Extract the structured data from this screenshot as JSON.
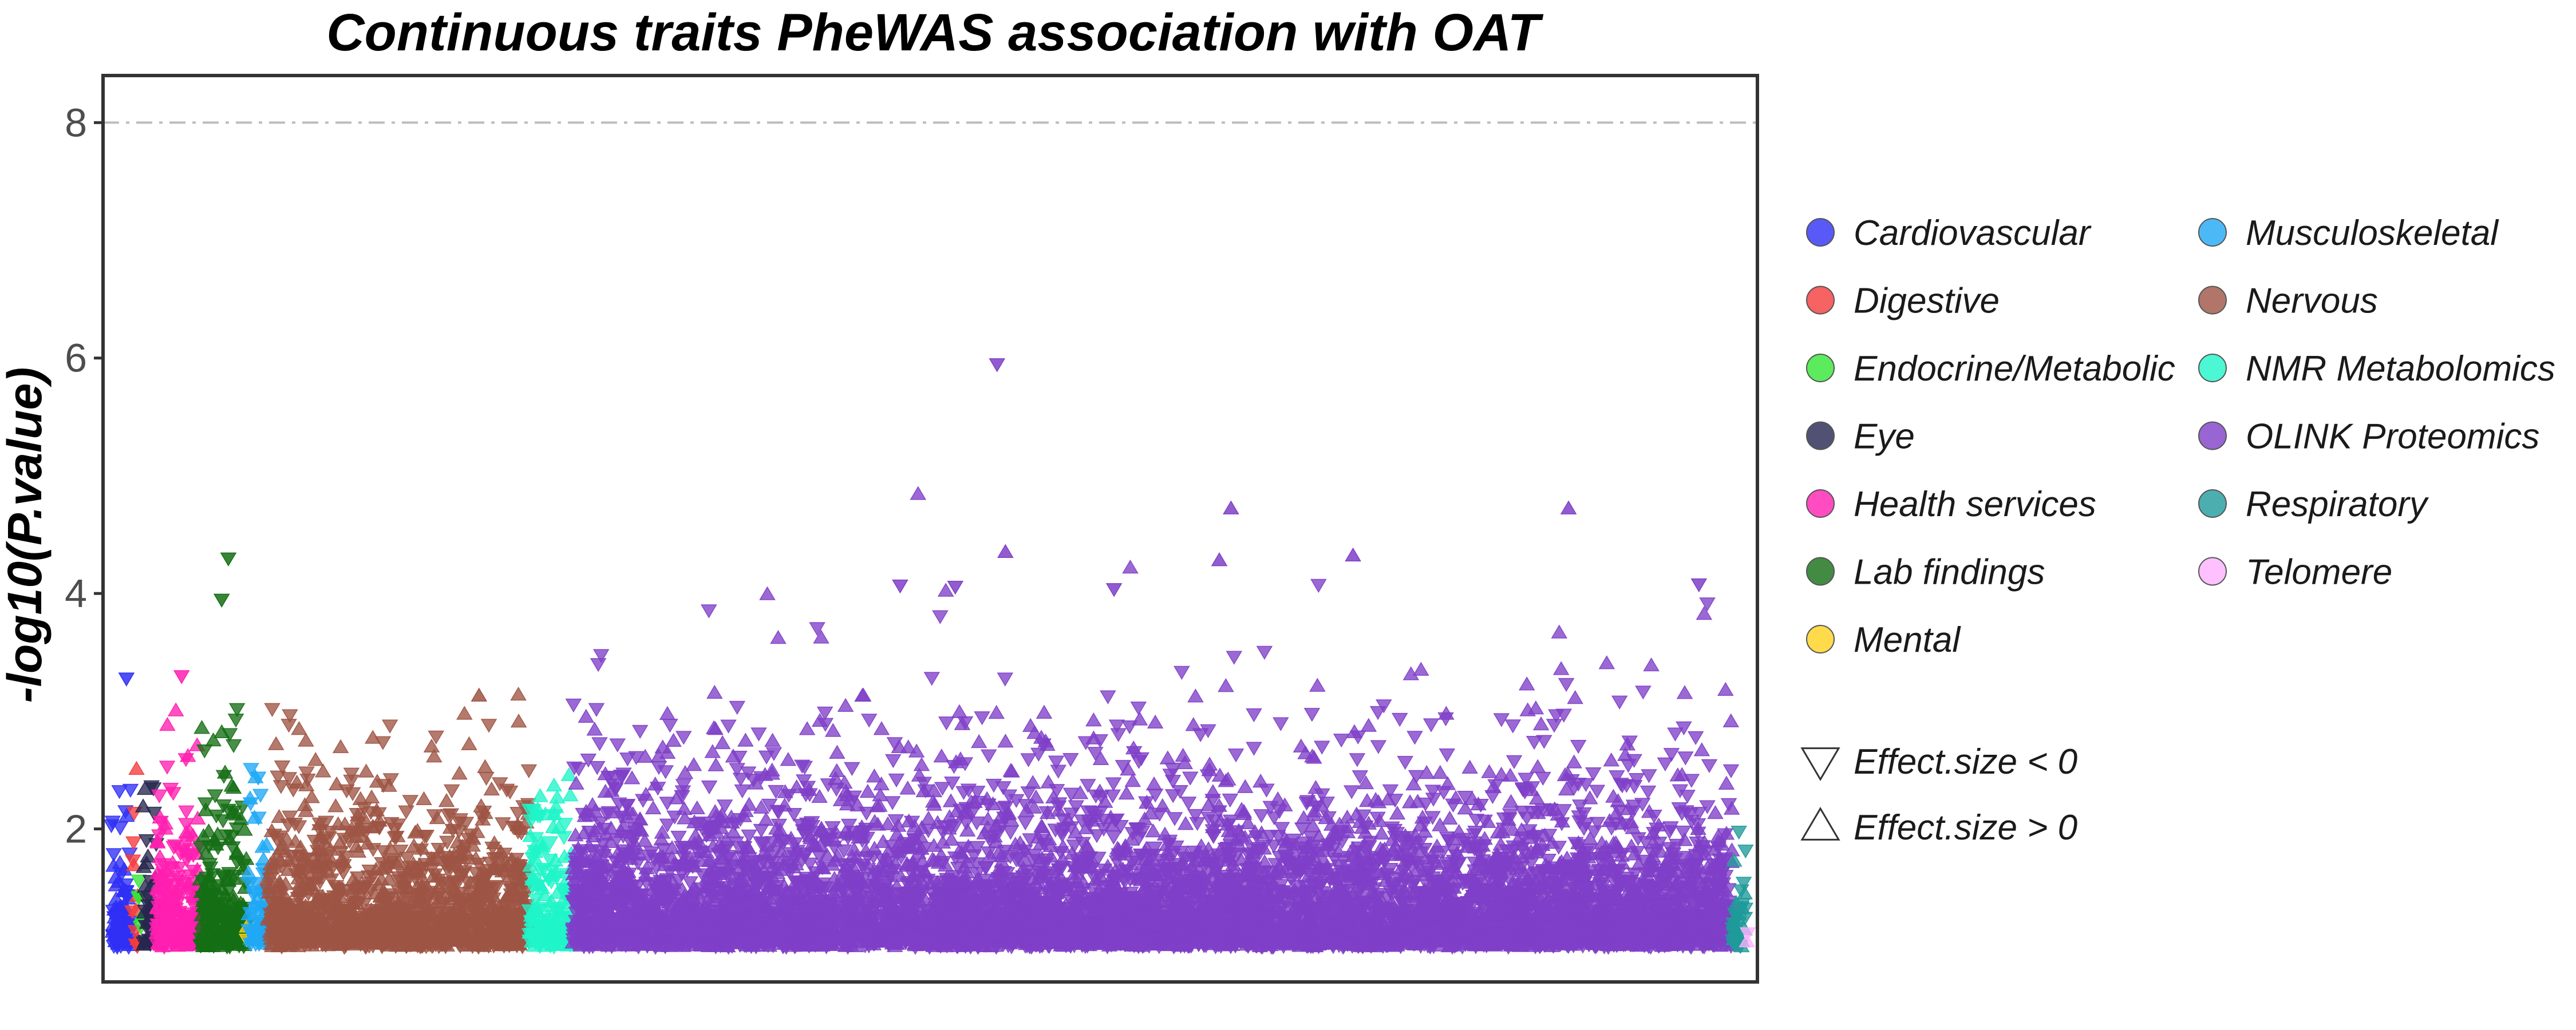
{
  "chart_data": {
    "type": "scatter",
    "title": "Continuous traits PheWAS association with OAT",
    "xlabel": "",
    "ylabel": "-log10(P.value)",
    "ylim": [
      0.7,
      8.4
    ],
    "yticks": [
      2,
      4,
      6,
      8
    ],
    "threshold_line": {
      "y": 8.0,
      "style": "dash-dot",
      "color": "#bdbdbd"
    },
    "grid": false,
    "legend_position": "right",
    "categories": [
      {
        "name": "Cardiovascular",
        "color": "#2f2ff5",
        "x_range": [
          0,
          12
        ],
        "n": 90,
        "ymax": 3.3
      },
      {
        "name": "Digestive",
        "color": "#f53b3b",
        "x_range": [
          12,
          16
        ],
        "n": 12,
        "ymax": 2.55
      },
      {
        "name": "Endocrine/Metabolic",
        "color": "#33e633",
        "x_range": [
          16,
          19
        ],
        "n": 6,
        "ymax": 1.6
      },
      {
        "name": "Eye",
        "color": "#262650",
        "x_range": [
          19,
          27
        ],
        "n": 45,
        "ymax": 2.4
      },
      {
        "name": "Health services",
        "color": "#ff1fb0",
        "x_range": [
          27,
          53
        ],
        "n": 220,
        "ymax": 3.3
      },
      {
        "name": "Lab findings",
        "color": "#146e14",
        "x_range": [
          53,
          81
        ],
        "n": 230,
        "ymax": 4.3
      },
      {
        "name": "Mental",
        "color": "#ffd21f",
        "x_range": [
          81,
          82
        ],
        "n": 2,
        "ymax": 1.3
      },
      {
        "name": "Musculoskeletal",
        "color": "#1fa8f5",
        "x_range": [
          82,
          93
        ],
        "n": 60,
        "ymax": 2.6
      },
      {
        "name": "Nervous",
        "color": "#9e5444",
        "x_range": [
          93,
          250
        ],
        "n": 1300,
        "ymax": 3.15
      },
      {
        "name": "NMR Metabolomics",
        "color": "#1ff5c8",
        "x_range": [
          250,
          276
        ],
        "n": 160,
        "ymax": 2.55
      },
      {
        "name": "OLINK Proteomics",
        "color": "#7f3fc8",
        "x_range": [
          276,
          970
        ],
        "n": 7000,
        "ymax": 5.95
      },
      {
        "name": "Respiratory",
        "color": "#1f9a9a",
        "x_range": [
          970,
          978
        ],
        "n": 35,
        "ymax": 2.3
      },
      {
        "name": "Telomere",
        "color": "#ffb0ff",
        "x_range": [
          978,
          980
        ],
        "n": 2,
        "ymax": 1.2
      }
    ],
    "highlighted_points": [
      {
        "category": "OLINK Proteomics",
        "x": 530,
        "y": 5.95,
        "effect": "negative"
      },
      {
        "category": "OLINK Proteomics",
        "x": 670,
        "y": 4.72,
        "effect": "positive"
      },
      {
        "category": "OLINK Proteomics",
        "x": 872,
        "y": 4.72,
        "effect": "positive"
      },
      {
        "category": "OLINK Proteomics",
        "x": 535,
        "y": 4.35,
        "effect": "positive"
      },
      {
        "category": "OLINK Proteomics",
        "x": 743,
        "y": 4.32,
        "effect": "positive"
      },
      {
        "category": "OLINK Proteomics",
        "x": 663,
        "y": 4.28,
        "effect": "positive"
      },
      {
        "category": "OLINK Proteomics",
        "x": 950,
        "y": 4.08,
        "effect": "negative"
      },
      {
        "category": "OLINK Proteomics",
        "x": 472,
        "y": 4.07,
        "effect": "negative"
      },
      {
        "category": "OLINK Proteomics",
        "x": 600,
        "y": 4.04,
        "effect": "negative"
      },
      {
        "category": "OLINK Proteomics",
        "x": 505,
        "y": 4.06,
        "effect": "negative"
      },
      {
        "category": "Lab findings",
        "x": 70,
        "y": 4.3,
        "effect": "negative"
      },
      {
        "category": "Lab findings",
        "x": 66,
        "y": 3.95,
        "effect": "negative"
      },
      {
        "category": "Cardiovascular",
        "x": 9,
        "y": 3.28,
        "effect": "negative"
      },
      {
        "category": "Health services",
        "x": 42,
        "y": 3.3,
        "effect": "negative"
      },
      {
        "category": "Nervous",
        "x": 220,
        "y": 3.13,
        "effect": "positive"
      }
    ],
    "shape_legend": [
      {
        "label": "Effect.size < 0",
        "shape": "triangle-down"
      },
      {
        "label": "Effect.size > 0",
        "shape": "triangle-up"
      }
    ]
  }
}
